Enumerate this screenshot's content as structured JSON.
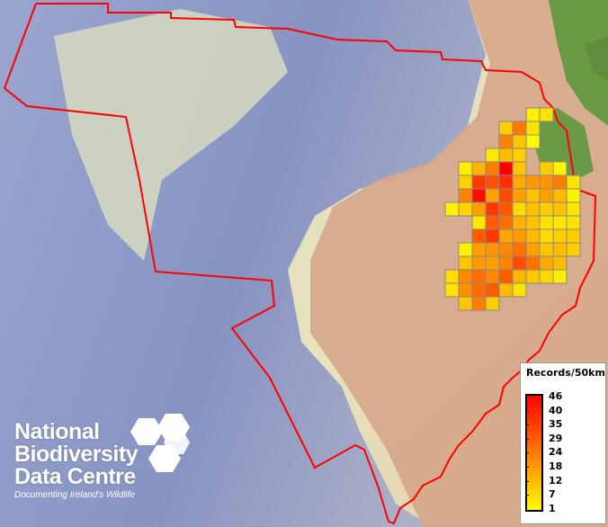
{
  "legend": {
    "title": "Records/50km",
    "labels": [
      "46",
      "40",
      "35",
      "29",
      "24",
      "18",
      "12",
      "7",
      "1"
    ],
    "min": 1,
    "max": 46,
    "color_low": "#ffff00",
    "color_mid": "#ff8800",
    "color_high": "#ff0000"
  },
  "logo": {
    "line1": "National",
    "line2": "Biodiversity",
    "line3": "Data Centre",
    "tagline": "Documenting Ireland's Wildlife"
  },
  "colors": {
    "boundary": "#ff0000",
    "grid_outline": "#888888",
    "land": "#6a9a45",
    "deep_sea": "#8f9cc4",
    "shelf": "#e6e2c0",
    "abyssal_plain": "#d5a88a"
  },
  "grid_records": [
    [
      null,
      null,
      null,
      null,
      null,
      null,
      4,
      6
    ],
    [
      null,
      null,
      null,
      null,
      10,
      25,
      6
    ],
    [
      null,
      null,
      null,
      null,
      23,
      11,
      2
    ],
    [
      null,
      null,
      null,
      5,
      13,
      10
    ],
    [
      null,
      4,
      14,
      24,
      46,
      11,
      null,
      10,
      3
    ],
    [
      null,
      9,
      36,
      32,
      38,
      16,
      19,
      20,
      24,
      6
    ],
    [
      null,
      23,
      44,
      18,
      33,
      18,
      12,
      18,
      13,
      3
    ],
    [
      3,
      9,
      18,
      36,
      31,
      7,
      12,
      10,
      12,
      6
    ],
    [
      null,
      null,
      5,
      30,
      27,
      14,
      12,
      6,
      5,
      6
    ],
    [
      null,
      null,
      30,
      36,
      17,
      19,
      13,
      7,
      10,
      10
    ],
    [
      null,
      3,
      18,
      20,
      22,
      26,
      18,
      11,
      13,
      10
    ],
    [
      null,
      11,
      19,
      18,
      23,
      33,
      26,
      16,
      13
    ],
    [
      7,
      22,
      27,
      22,
      30,
      14,
      11,
      8,
      4
    ],
    [
      6,
      21,
      27,
      30,
      13,
      6
    ],
    [
      null,
      11,
      24,
      10
    ]
  ]
}
